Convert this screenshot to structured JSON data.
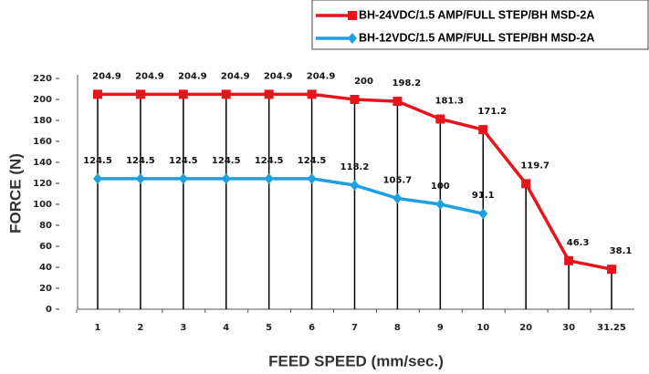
{
  "chart_data": {
    "type": "line",
    "categories": [
      "1",
      "2",
      "3",
      "4",
      "5",
      "6",
      "7",
      "8",
      "9",
      "10",
      "20",
      "30",
      "31.25"
    ],
    "series": [
      {
        "name": "BH-24VDC/1.5 AMP/FULL STEP/BH MSD-2A",
        "color": "#e8141c",
        "values": [
          204.9,
          204.9,
          204.9,
          204.9,
          204.9,
          204.9,
          200,
          198.2,
          181.3,
          171.2,
          119.7,
          46.3,
          38.1
        ]
      },
      {
        "name": "BH-12VDC/1.5 AMP/FULL STEP/BH MSD-2A",
        "color": "#1ea0e0",
        "values": [
          124.5,
          124.5,
          124.5,
          124.5,
          124.5,
          124.5,
          118.2,
          105.7,
          100,
          91.1,
          null,
          null,
          null
        ]
      }
    ],
    "ylim": [
      0,
      220
    ],
    "yticks": [
      0,
      20,
      40,
      60,
      80,
      100,
      120,
      140,
      160,
      180,
      200,
      220
    ],
    "xlabel": "FEED SPEED (mm/sec.)",
    "ylabel": "FORCE (N)",
    "legend": "top-right"
  }
}
